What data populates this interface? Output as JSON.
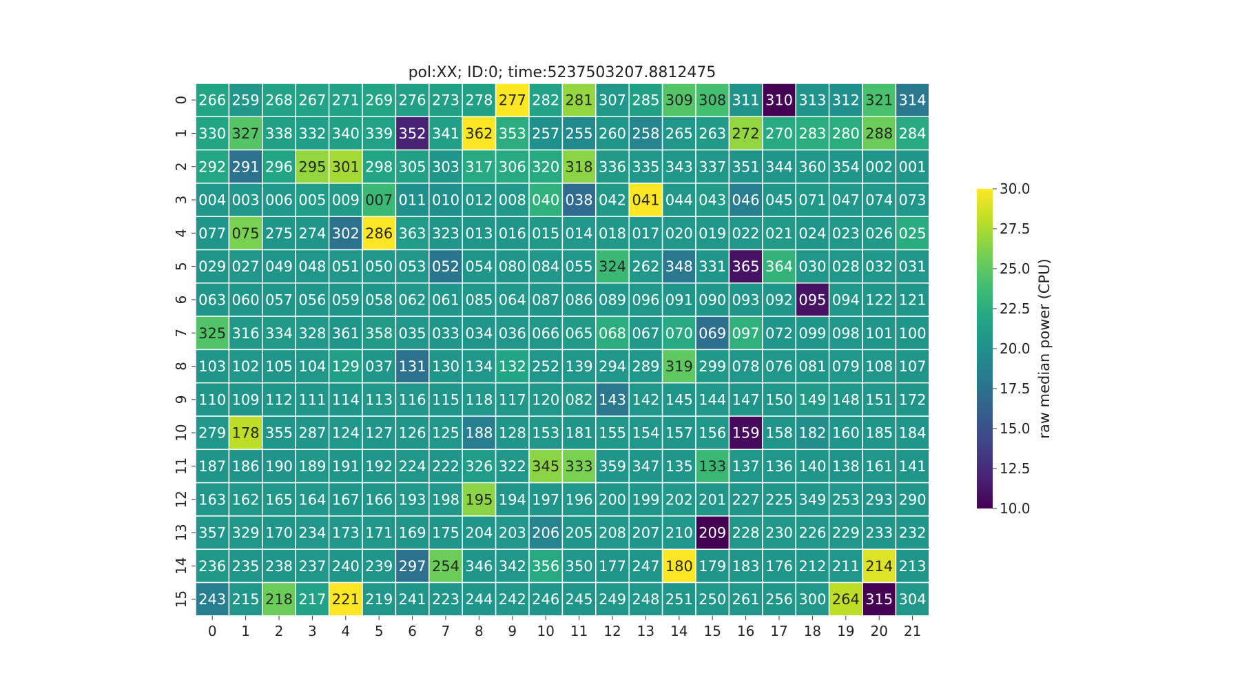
{
  "chart_data": {
    "type": "heatmap",
    "title": "pol:XX; ID:0; time:5237503207.8812475",
    "x_ticks": [
      "0",
      "1",
      "2",
      "3",
      "4",
      "5",
      "6",
      "7",
      "8",
      "9",
      "10",
      "11",
      "12",
      "13",
      "14",
      "15",
      "16",
      "17",
      "18",
      "19",
      "20",
      "21"
    ],
    "y_ticks": [
      "0",
      "1",
      "2",
      "3",
      "4",
      "5",
      "6",
      "7",
      "8",
      "9",
      "10",
      "11",
      "12",
      "13",
      "14",
      "15"
    ],
    "annotations": [
      [
        "266",
        "259",
        "268",
        "267",
        "271",
        "269",
        "276",
        "273",
        "278",
        "277",
        "282",
        "281",
        "307",
        "285",
        "309",
        "308",
        "311",
        "310",
        "313",
        "312",
        "321",
        "314"
      ],
      [
        "330",
        "327",
        "338",
        "332",
        "340",
        "339",
        "352",
        "341",
        "362",
        "353",
        "257",
        "255",
        "260",
        "258",
        "265",
        "263",
        "272",
        "270",
        "283",
        "280",
        "288",
        "284"
      ],
      [
        "292",
        "291",
        "296",
        "295",
        "301",
        "298",
        "305",
        "303",
        "317",
        "306",
        "320",
        "318",
        "336",
        "335",
        "343",
        "337",
        "351",
        "344",
        "360",
        "354",
        "002",
        "001"
      ],
      [
        "004",
        "003",
        "006",
        "005",
        "009",
        "007",
        "011",
        "010",
        "012",
        "008",
        "040",
        "038",
        "042",
        "041",
        "044",
        "043",
        "046",
        "045",
        "071",
        "047",
        "074",
        "073"
      ],
      [
        "077",
        "075",
        "275",
        "274",
        "302",
        "286",
        "363",
        "323",
        "013",
        "016",
        "015",
        "014",
        "018",
        "017",
        "020",
        "019",
        "022",
        "021",
        "024",
        "023",
        "026",
        "025"
      ],
      [
        "029",
        "027",
        "049",
        "048",
        "051",
        "050",
        "053",
        "052",
        "054",
        "080",
        "084",
        "055",
        "324",
        "262",
        "348",
        "331",
        "365",
        "364",
        "030",
        "028",
        "032",
        "031"
      ],
      [
        "063",
        "060",
        "057",
        "056",
        "059",
        "058",
        "062",
        "061",
        "085",
        "064",
        "087",
        "086",
        "089",
        "096",
        "091",
        "090",
        "093",
        "092",
        "095",
        "094",
        "122",
        "121"
      ],
      [
        "325",
        "316",
        "334",
        "328",
        "361",
        "358",
        "035",
        "033",
        "034",
        "036",
        "066",
        "065",
        "068",
        "067",
        "070",
        "069",
        "097",
        "072",
        "099",
        "098",
        "101",
        "100"
      ],
      [
        "103",
        "102",
        "105",
        "104",
        "129",
        "037",
        "131",
        "130",
        "134",
        "132",
        "252",
        "139",
        "294",
        "289",
        "319",
        "299",
        "078",
        "076",
        "081",
        "079",
        "108",
        "107"
      ],
      [
        "110",
        "109",
        "112",
        "111",
        "114",
        "113",
        "116",
        "115",
        "118",
        "117",
        "120",
        "082",
        "143",
        "142",
        "145",
        "144",
        "147",
        "150",
        "149",
        "148",
        "151",
        "172"
      ],
      [
        "279",
        "178",
        "355",
        "287",
        "124",
        "127",
        "126",
        "125",
        "188",
        "128",
        "153",
        "181",
        "155",
        "154",
        "157",
        "156",
        "159",
        "158",
        "182",
        "160",
        "185",
        "184"
      ],
      [
        "187",
        "186",
        "190",
        "189",
        "191",
        "192",
        "224",
        "222",
        "326",
        "322",
        "345",
        "333",
        "359",
        "347",
        "135",
        "133",
        "137",
        "136",
        "140",
        "138",
        "161",
        "141"
      ],
      [
        "163",
        "162",
        "165",
        "164",
        "167",
        "166",
        "193",
        "198",
        "195",
        "194",
        "197",
        "196",
        "200",
        "199",
        "202",
        "201",
        "227",
        "225",
        "349",
        "253",
        "293",
        "290"
      ],
      [
        "357",
        "329",
        "170",
        "234",
        "173",
        "171",
        "169",
        "175",
        "204",
        "203",
        "206",
        "205",
        "208",
        "207",
        "210",
        "209",
        "228",
        "230",
        "226",
        "229",
        "233",
        "232"
      ],
      [
        "236",
        "235",
        "238",
        "237",
        "240",
        "239",
        "297",
        "254",
        "346",
        "342",
        "356",
        "350",
        "177",
        "247",
        "180",
        "179",
        "183",
        "176",
        "212",
        "211",
        "214",
        "213"
      ],
      [
        "243",
        "215",
        "218",
        "217",
        "221",
        "219",
        "241",
        "223",
        "244",
        "242",
        "246",
        "245",
        "249",
        "248",
        "251",
        "250",
        "261",
        "256",
        "300",
        "264",
        "315",
        "304"
      ]
    ],
    "values": [
      [
        21.8,
        20.6,
        21.6,
        21.6,
        21.6,
        21.8,
        21.3,
        21.4,
        21.4,
        30.0,
        21.6,
        26.8,
        20.6,
        21.4,
        24.6,
        24.0,
        20.3,
        10.0,
        20.3,
        20.0,
        24.2,
        18.0
      ],
      [
        21.8,
        24.6,
        21.4,
        21.2,
        21.4,
        21.5,
        12.0,
        21.3,
        30.0,
        22.5,
        20.0,
        19.5,
        20.4,
        19.0,
        20.6,
        20.9,
        26.8,
        22.3,
        22.5,
        22.5,
        25.5,
        22.3
      ],
      [
        21.9,
        17.5,
        21.8,
        26.8,
        27.3,
        21.8,
        21.4,
        20.4,
        22.3,
        22.3,
        22.3,
        26.5,
        20.9,
        20.6,
        20.6,
        20.6,
        20.3,
        20.4,
        20.6,
        20.4,
        20.4,
        20.4
      ],
      [
        20.5,
        20.5,
        20.5,
        21.0,
        20.9,
        23.5,
        20.0,
        20.0,
        20.6,
        20.7,
        22.8,
        17.0,
        20.8,
        30.0,
        20.6,
        20.9,
        18.5,
        20.4,
        20.8,
        20.7,
        20.6,
        20.5
      ],
      [
        20.4,
        26.0,
        20.4,
        20.4,
        17.5,
        30.0,
        21.0,
        20.4,
        20.4,
        20.4,
        20.8,
        20.5,
        20.8,
        20.5,
        20.6,
        20.6,
        20.5,
        20.9,
        20.4,
        20.6,
        20.8,
        22.4
      ],
      [
        20.4,
        20.5,
        20.4,
        20.5,
        20.6,
        20.5,
        20.5,
        17.8,
        20.4,
        20.4,
        20.6,
        20.5,
        23.5,
        20.6,
        18.0,
        20.4,
        11.0,
        23.0,
        20.6,
        20.6,
        20.6,
        20.5
      ],
      [
        20.4,
        20.4,
        20.4,
        20.4,
        20.4,
        20.4,
        20.7,
        20.4,
        20.5,
        20.6,
        20.4,
        20.4,
        20.4,
        20.6,
        20.4,
        20.4,
        20.4,
        20.4,
        11.0,
        20.6,
        20.4,
        20.4
      ],
      [
        24.5,
        20.8,
        20.9,
        20.7,
        20.4,
        20.9,
        20.5,
        20.4,
        20.4,
        20.5,
        20.6,
        20.9,
        22.5,
        20.7,
        22.3,
        17.3,
        22.8,
        20.4,
        20.4,
        20.5,
        20.4,
        20.4
      ],
      [
        20.4,
        20.5,
        20.4,
        20.6,
        21.3,
        20.4,
        17.5,
        20.4,
        20.5,
        21.8,
        20.5,
        20.5,
        20.5,
        20.5,
        25.0,
        20.8,
        20.5,
        20.5,
        20.4,
        20.5,
        20.5,
        20.4
      ],
      [
        20.4,
        20.4,
        20.4,
        20.4,
        20.4,
        20.6,
        20.5,
        20.4,
        20.5,
        20.6,
        20.6,
        20.7,
        18.0,
        20.5,
        20.4,
        20.5,
        20.4,
        20.5,
        20.9,
        20.6,
        20.5,
        20.4
      ],
      [
        20.5,
        28.0,
        20.4,
        20.4,
        20.5,
        20.4,
        20.4,
        20.5,
        18.5,
        20.4,
        20.6,
        20.4,
        20.6,
        20.5,
        20.4,
        20.6,
        10.5,
        20.4,
        19.8,
        20.4,
        20.4,
        20.4
      ],
      [
        20.4,
        20.3,
        20.3,
        20.6,
        20.4,
        20.4,
        20.6,
        20.4,
        21.0,
        20.6,
        26.5,
        26.0,
        20.4,
        20.4,
        20.4,
        23.5,
        20.6,
        20.5,
        20.4,
        20.3,
        20.5,
        20.4
      ],
      [
        20.5,
        20.6,
        20.6,
        20.5,
        20.4,
        20.4,
        20.6,
        20.6,
        26.5,
        20.4,
        20.4,
        20.5,
        20.4,
        20.4,
        20.7,
        20.4,
        20.4,
        20.4,
        20.4,
        20.5,
        20.3,
        20.4
      ],
      [
        20.5,
        20.6,
        20.4,
        20.5,
        20.5,
        20.6,
        20.4,
        20.4,
        20.4,
        20.5,
        19.0,
        20.4,
        20.6,
        20.4,
        20.5,
        10.0,
        20.6,
        20.6,
        20.6,
        20.6,
        20.4,
        20.4
      ],
      [
        20.8,
        20.4,
        20.4,
        20.5,
        20.4,
        20.4,
        17.5,
        25.5,
        20.4,
        20.6,
        22.3,
        20.5,
        20.4,
        20.4,
        30.0,
        20.4,
        20.4,
        20.4,
        20.4,
        20.5,
        29.0,
        20.4
      ],
      [
        18.5,
        20.5,
        25.5,
        21.6,
        30.0,
        20.6,
        20.4,
        20.4,
        20.4,
        20.6,
        20.4,
        20.4,
        20.6,
        20.6,
        20.4,
        20.6,
        20.5,
        20.4,
        20.6,
        28.0,
        10.0,
        20.6
      ]
    ],
    "vmin": 10.0,
    "vmax": 30.0,
    "colormap": "viridis",
    "colorbar": {
      "label": "raw median power (CPU)",
      "ticks": [
        "10.0",
        "12.5",
        "15.0",
        "17.5",
        "20.0",
        "22.5",
        "25.0",
        "27.5",
        "30.0"
      ],
      "tick_values": [
        10.0,
        12.5,
        15.0,
        17.5,
        20.0,
        22.5,
        25.0,
        27.5,
        30.0
      ]
    },
    "grid": true,
    "xlabel": "",
    "ylabel": ""
  }
}
